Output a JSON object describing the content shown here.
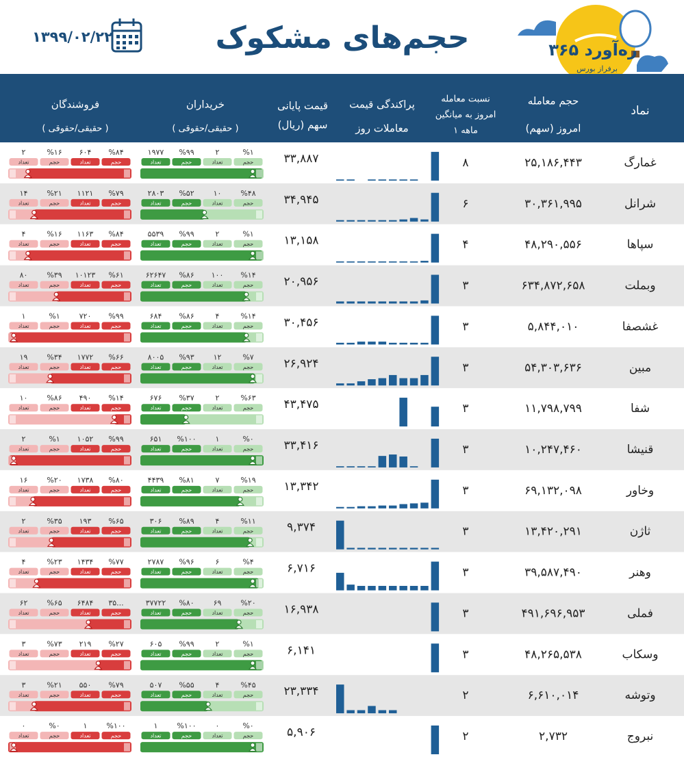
{
  "header": {
    "title": "حجم‌های مشکوک",
    "date": "۱۳۹۹/۰۲/۲۲",
    "logo": "ره‌آورد ۳۶۵",
    "logo_sub": "برفراز بورس"
  },
  "table": {
    "columns": {
      "symbol": "نماد",
      "volume": [
        "حجم معامله",
        "امروز (سهم)"
      ],
      "ratio": [
        "نسبت معامله",
        "امروز به میانگین",
        "۱ ماهه"
      ],
      "histogram": [
        "پراکندگی قیمت",
        "معاملات روز"
      ],
      "price": [
        "قیمت پایانی",
        "سهم (ریال)"
      ],
      "buyers": [
        "خریداران",
        "( حقیقی/حقوقی )"
      ],
      "sellers": [
        "فروشندگان",
        "( حقیقی/حقوقی )"
      ]
    },
    "labels": {
      "volume": "حجم",
      "count": "تعداد"
    },
    "rows": [
      {
        "symbol": "غمارگ",
        "volume": "۲۵,۱۸۶,۴۴۳",
        "ratio": "۸",
        "price": "۳۳,۸۸۷",
        "histogram": [
          4,
          4,
          0,
          4,
          4,
          4,
          4,
          4,
          0,
          100
        ],
        "buyers": [
          "%۱",
          "۲",
          "%۹۹",
          "۱۹۷۷"
        ],
        "sellers": [
          "%۸۴",
          "۶۰۴",
          "%۱۶",
          "۲"
        ]
      },
      {
        "symbol": "شرانل",
        "volume": "۳۰,۳۶۱,۹۹۵",
        "ratio": "۶",
        "price": "۳۴,۹۴۵",
        "histogram": [
          4,
          4,
          4,
          4,
          4,
          4,
          6,
          10,
          6,
          80
        ],
        "buyers": [
          "%۴۸",
          "۱۰",
          "%۵۲",
          "۲۸۰۳"
        ],
        "sellers": [
          "%۷۹",
          "۱۱۲۱",
          "%۲۱",
          "۱۴"
        ]
      },
      {
        "symbol": "سپاها",
        "volume": "۴۸,۲۹۰,۵۵۶",
        "ratio": "۴",
        "price": "۱۳,۱۵۸",
        "histogram": [
          4,
          4,
          4,
          4,
          4,
          4,
          4,
          4,
          6,
          100
        ],
        "buyers": [
          "%۱",
          "۲",
          "%۹۹",
          "۵۵۳۹"
        ],
        "sellers": [
          "%۸۴",
          "۱۱۶۳",
          "%۱۶",
          "۴"
        ]
      },
      {
        "symbol": "وبملت",
        "volume": "۶۳۴,۸۷۲,۶۵۸",
        "ratio": "۳",
        "price": "۲۰,۹۵۶",
        "histogram": [
          4,
          4,
          4,
          4,
          4,
          4,
          4,
          4,
          6,
          55
        ],
        "buyers": [
          "%۱۴",
          "۱۰۰",
          "%۸۶",
          "۶۲۶۴۷"
        ],
        "sellers": [
          "%۶۱",
          "۱۰۱۲۳",
          "%۳۹",
          "۸۰"
        ]
      },
      {
        "symbol": "غشصفا",
        "volume": "۵,۸۴۴,۰۱۰",
        "ratio": "۳",
        "price": "۳۰,۴۵۶",
        "histogram": [
          6,
          6,
          10,
          10,
          10,
          6,
          6,
          6,
          6,
          100
        ],
        "buyers": [
          "%۱۴",
          "۴",
          "%۸۶",
          "۶۸۴"
        ],
        "sellers": [
          "%۹۹",
          "۷۲۰",
          "%۱",
          "۱"
        ]
      },
      {
        "symbol": "مبین",
        "volume": "۵۴,۳۰۳,۶۳۶",
        "ratio": "۳",
        "price": "۲۶,۹۲۴",
        "histogram": [
          4,
          4,
          8,
          12,
          14,
          20,
          14,
          14,
          20,
          55
        ],
        "buyers": [
          "%۷",
          "۱۲",
          "%۹۳",
          "۸۰۰۵"
        ],
        "sellers": [
          "%۶۶",
          "۱۷۷۲",
          "%۳۴",
          "۱۹"
        ]
      },
      {
        "symbol": "شفا",
        "volume": "۱۱,۷۹۸,۷۹۹",
        "ratio": "۳",
        "price": "۴۳,۴۷۵",
        "histogram": [
          0,
          0,
          0,
          0,
          0,
          0,
          80,
          0,
          0,
          55
        ],
        "buyers": [
          "%۶۳",
          "۲",
          "%۳۷",
          "۶۷۶"
        ],
        "sellers": [
          "%۱۴",
          "۴۹۰",
          "%۸۶",
          "۱۰"
        ]
      },
      {
        "symbol": "قنیشا",
        "volume": "۱۰,۲۴۷,۴۶۰",
        "ratio": "۳",
        "price": "۳۳,۴۱۶",
        "histogram": [
          4,
          4,
          4,
          4,
          40,
          45,
          38,
          4,
          0,
          100
        ],
        "buyers": [
          "%۰",
          "۱",
          "%۱۰۰",
          "۶۵۱"
        ],
        "sellers": [
          "%۹۹",
          "۱۰۵۲",
          "%۱",
          "۲"
        ]
      },
      {
        "symbol": "وخاور",
        "volume": "۶۹,۱۳۲,۰۹۸",
        "ratio": "۳",
        "price": "۱۳,۳۴۲",
        "histogram": [
          4,
          4,
          6,
          6,
          8,
          8,
          12,
          14,
          16,
          80
        ],
        "buyers": [
          "%۱۹",
          "۷",
          "%۸۱",
          "۴۴۳۹"
        ],
        "sellers": [
          "%۸۰",
          "۱۷۳۸",
          "%۲۰",
          "۱۶"
        ]
      },
      {
        "symbol": "ثاژن",
        "volume": "۱۳,۴۲۰,۲۹۱",
        "ratio": "۳",
        "price": "۹,۳۷۴",
        "histogram": [
          75,
          4,
          4,
          4,
          4,
          4,
          4,
          4,
          4,
          4
        ],
        "buyers": [
          "%۱۱",
          "۴",
          "%۸۹",
          "۳۰۶"
        ],
        "sellers": [
          "%۶۵",
          "۱۹۳",
          "%۳۵",
          "۲"
        ]
      },
      {
        "symbol": "وهنر",
        "volume": "۳۹,۵۸۷,۴۹۰",
        "ratio": "۳",
        "price": "۶,۷۱۶",
        "histogram": [
          55,
          18,
          14,
          14,
          14,
          14,
          14,
          14,
          14,
          90
        ],
        "buyers": [
          "%۴",
          "۶",
          "%۹۶",
          "۲۷۸۷"
        ],
        "sellers": [
          "%۷۷",
          "۱۴۳۴",
          "%۲۳",
          "۴"
        ]
      },
      {
        "symbol": "فملی",
        "volume": "۴۹۱,۶۹۶,۹۵۳",
        "ratio": "۳",
        "price": "۱۶,۹۳۸",
        "histogram": [
          0,
          0,
          0,
          0,
          0,
          0,
          0,
          0,
          0,
          55
        ],
        "buyers": [
          "%۲۰",
          "۶۹",
          "%۸۰",
          "۳۷۷۲۲"
        ],
        "sellers": [
          "۳۵...",
          "۶۴۸۴",
          "%۶۵",
          "۶۲"
        ]
      },
      {
        "symbol": "وسکاب",
        "volume": "۴۸,۲۶۵,۵۳۸",
        "ratio": "۳",
        "price": "۶,۱۴۱",
        "histogram": [
          0,
          0,
          0,
          0,
          0,
          0,
          0,
          0,
          0,
          65
        ],
        "buyers": [
          "%۱",
          "۲",
          "%۹۹",
          "۶۰۵"
        ],
        "sellers": [
          "%۲۷",
          "۲۱۹",
          "%۷۳",
          "۳"
        ]
      },
      {
        "symbol": "وتوشه",
        "volume": "۶,۶۱۰,۰۱۴",
        "ratio": "۲",
        "price": "۲۳,۳۳۴",
        "histogram": [
          55,
          6,
          6,
          14,
          6,
          6,
          0,
          0,
          0,
          0
        ],
        "buyers": [
          "%۴۵",
          "۴",
          "%۵۵",
          "۵۰۷"
        ],
        "sellers": [
          "%۷۹",
          "۵۵۰",
          "%۲۱",
          "۳"
        ]
      },
      {
        "symbol": "نبروج",
        "volume": "۲,۷۳۲",
        "ratio": "۲",
        "price": "۵,۹۰۶",
        "histogram": [
          0,
          0,
          0,
          0,
          0,
          0,
          0,
          0,
          0,
          45
        ],
        "buyers": [
          "%۰",
          "۰",
          "%۱۰۰",
          "۱"
        ],
        "sellers": [
          "%۱۰۰",
          "۱",
          "%۰",
          "۰"
        ]
      }
    ]
  }
}
